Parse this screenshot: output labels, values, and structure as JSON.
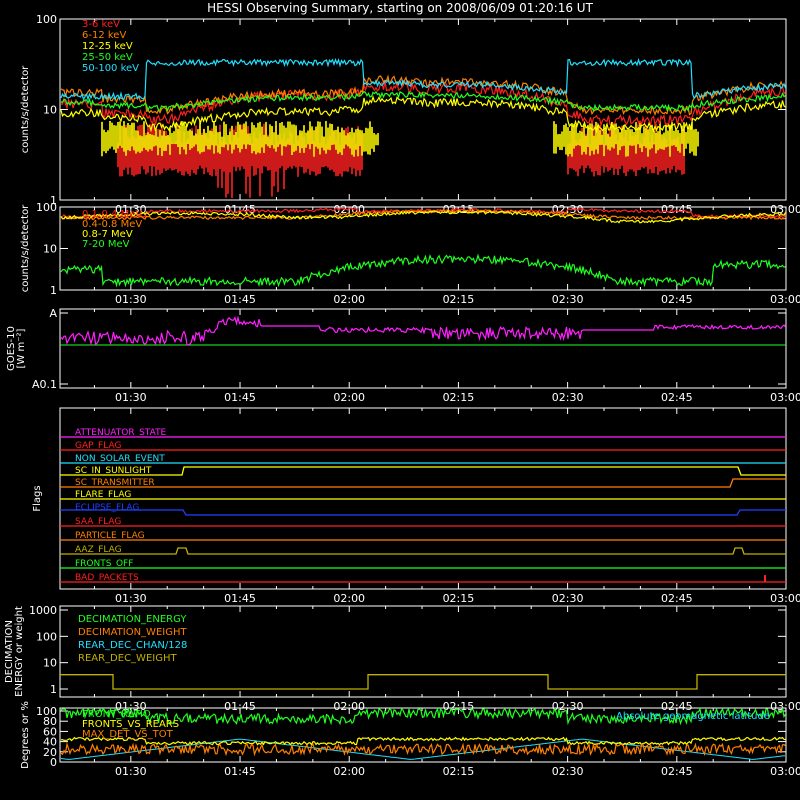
{
  "title": "HESSI Observing Summary, starting on 2008/06/09 01:20:16 UT",
  "colors": {
    "red": "#ff2020",
    "orange": "#ff8000",
    "yellow": "#ffff00",
    "green": "#20ff20",
    "cyan": "#20e0ff",
    "magenta": "#ff20ff",
    "blue": "#2040ff",
    "olive": "#c0b000",
    "salmon": "#ff6060",
    "lightorange": "#ffa040"
  },
  "time_ticks": [
    "01:30",
    "01:45",
    "02:00",
    "02:15",
    "02:30",
    "02:45",
    "03:00"
  ],
  "chart_data": [
    {
      "type": "line",
      "name": "panel-count-rates",
      "ylabel": "counts/s/detector",
      "yscale": "log",
      "ylim": [
        1,
        100
      ],
      "yticks": [
        "100",
        "10",
        "1"
      ],
      "legend_position": "top-left",
      "series": [
        {
          "name": "3-6 keV",
          "color": "#ff2020"
        },
        {
          "name": "6-12 keV",
          "color": "#ff8000"
        },
        {
          "name": "12-25 keV",
          "color": "#ffff00"
        },
        {
          "name": "25-50 keV",
          "color": "#20ff20"
        },
        {
          "name": "50-100 keV",
          "color": "#20e0ff"
        }
      ]
    },
    {
      "type": "line",
      "name": "panel-high-energy",
      "ylabel": "counts/s/detector",
      "yscale": "log",
      "ylim": [
        1,
        100
      ],
      "yticks": [
        "100",
        "10",
        "1"
      ],
      "legend_position": "top-left",
      "series": [
        {
          "name": "0.1-0.4 MeV",
          "color": "#ff2020"
        },
        {
          "name": "0.4-0.8 MeV",
          "color": "#ff8000"
        },
        {
          "name": "0.8-7 MeV",
          "color": "#ffff00"
        },
        {
          "name": "7-20 MeV",
          "color": "#20ff20"
        }
      ]
    },
    {
      "type": "line",
      "name": "panel-goes",
      "ylabel": "GOES-10",
      "ylabel2": "[W m⁻²]",
      "yticks": [
        "A",
        "A0.1"
      ],
      "series": [
        {
          "name": "",
          "color": "#ff20ff"
        },
        {
          "name": "",
          "color": "#20ff20"
        }
      ]
    },
    {
      "type": "line",
      "name": "panel-flags",
      "ylabel": "Flags",
      "series": [
        {
          "name": "ATTENUATOR_STATE",
          "color": "#ff20ff"
        },
        {
          "name": "GAP_FLAG",
          "color": "#ff2020"
        },
        {
          "name": "NON_SOLAR_EVENT",
          "color": "#20e0ff"
        },
        {
          "name": "SC_IN_SUNLIGHT",
          "color": "#ffff00"
        },
        {
          "name": "SC_TRANSMITTER",
          "color": "#ff8000"
        },
        {
          "name": "FLARE_FLAG",
          "color": "#ffff00"
        },
        {
          "name": "ECLIPSE_FLAG",
          "color": "#2040ff"
        },
        {
          "name": "SAA_FLAG",
          "color": "#ff2020"
        },
        {
          "name": "PARTICLE_FLAG",
          "color": "#ff8000"
        },
        {
          "name": "AAZ_FLAG",
          "color": "#c0b000"
        },
        {
          "name": "FRONTS_OFF",
          "color": "#20ff20"
        },
        {
          "name": "BAD_PACKETS",
          "color": "#ff2020"
        }
      ]
    },
    {
      "type": "line",
      "name": "panel-decimation",
      "ylabel": "DECIMATION",
      "ylabel2": "ENERGY or weight",
      "yscale": "log",
      "ylim": [
        1,
        1000
      ],
      "yticks": [
        "1000",
        "100",
        "10",
        "1"
      ],
      "series": [
        {
          "name": "DECIMATION_ENERGY",
          "color": "#20ff20"
        },
        {
          "name": "DECIMATION_WEIGHT",
          "color": "#ff8000"
        },
        {
          "name": "REAR_DEC_CHAN/128",
          "color": "#20e0ff"
        },
        {
          "name": "REAR_DEC_WEIGHT",
          "color": "#c0b000"
        }
      ]
    },
    {
      "type": "line",
      "name": "panel-ratios",
      "ylabel": "Degrees or %",
      "ylim": [
        0,
        100
      ],
      "yticks": [
        "100",
        "80",
        "60",
        "40",
        "20",
        "0"
      ],
      "series": [
        {
          "name": "FRONT_RATIO",
          "color": "#20ff20"
        },
        {
          "name": "FRONTS_VS_REARS",
          "color": "#ffff00"
        },
        {
          "name": "MAX_DET_VS_TOT",
          "color": "#ff8000"
        },
        {
          "name": "Absolute geomagnetic latitude",
          "color": "#20e0ff"
        }
      ]
    }
  ]
}
